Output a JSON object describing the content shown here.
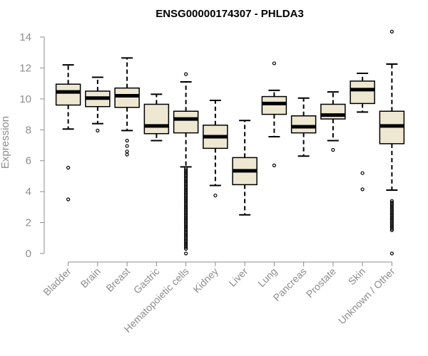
{
  "chart_data": {
    "type": "boxplot",
    "title": "ENSG00000174307 - PHLDA3",
    "xlabel": "",
    "ylabel": "Expression",
    "ylim": [
      0,
      14
    ],
    "yticks": [
      0,
      2,
      4,
      6,
      8,
      10,
      12,
      14
    ],
    "box_color": "#eee8d3",
    "median_color": "#000000",
    "axis_color": "#8c8c8c",
    "categories": [
      "Bladder",
      "Brain",
      "Breast",
      "Gastric",
      "Hematopoietic cells",
      "Kidney",
      "Liver",
      "Lung",
      "Pancreas",
      "Prostate",
      "Skin",
      "Unknown / Other"
    ],
    "boxes": [
      {
        "name": "Bladder",
        "whisker_low": 8.05,
        "q1": 9.6,
        "median": 10.45,
        "q3": 10.95,
        "whisker_high": 12.2,
        "outliers": [
          5.55,
          3.5
        ]
      },
      {
        "name": "Brain",
        "whisker_low": 8.4,
        "q1": 9.5,
        "median": 10.05,
        "q3": 10.5,
        "whisker_high": 11.4,
        "outliers": [
          7.95
        ]
      },
      {
        "name": "Breast",
        "whisker_low": 7.95,
        "q1": 9.45,
        "median": 10.2,
        "q3": 10.7,
        "whisker_high": 12.65,
        "outliers": [
          7.3,
          6.95,
          6.6,
          6.4
        ]
      },
      {
        "name": "Gastric",
        "whisker_low": 7.3,
        "q1": 7.75,
        "median": 8.25,
        "q3": 9.65,
        "whisker_high": 10.3,
        "outliers": []
      },
      {
        "name": "Hematopoietic cells",
        "whisker_low": 5.6,
        "q1": 7.8,
        "median": 8.7,
        "q3": 9.2,
        "whisker_high": 11.1,
        "outliers": [
          11.6,
          5.5,
          5.4,
          5.3,
          5.2,
          5.1,
          5.0,
          4.9,
          4.8,
          4.7,
          4.6,
          4.5,
          4.4,
          4.3,
          4.2,
          4.1,
          4.0,
          3.9,
          3.8,
          3.7,
          3.6,
          3.5,
          3.4,
          3.3,
          3.2,
          3.1,
          3.0,
          2.9,
          2.8,
          2.7,
          2.6,
          2.5,
          2.4,
          2.3,
          2.2,
          2.1,
          2.0,
          1.9,
          1.8,
          1.7,
          1.6,
          1.5,
          1.4,
          1.3,
          1.2,
          1.1,
          1.0,
          0.9,
          0.8,
          0.7,
          0.6,
          0.5,
          0.4,
          0.3,
          0.0
        ]
      },
      {
        "name": "Kidney",
        "whisker_low": 4.4,
        "q1": 6.8,
        "median": 7.55,
        "q3": 8.3,
        "whisker_high": 9.9,
        "outliers": [
          3.75
        ]
      },
      {
        "name": "Liver",
        "whisker_low": 2.5,
        "q1": 4.45,
        "median": 5.35,
        "q3": 6.2,
        "whisker_high": 8.6,
        "outliers": []
      },
      {
        "name": "Lung",
        "whisker_low": 7.55,
        "q1": 9.0,
        "median": 9.7,
        "q3": 10.15,
        "whisker_high": 10.55,
        "outliers": [
          12.3,
          5.7
        ]
      },
      {
        "name": "Pancreas",
        "whisker_low": 6.3,
        "q1": 7.8,
        "median": 8.2,
        "q3": 8.9,
        "whisker_high": 10.05,
        "outliers": []
      },
      {
        "name": "Prostate",
        "whisker_low": 7.3,
        "q1": 8.7,
        "median": 8.95,
        "q3": 9.65,
        "whisker_high": 10.45,
        "outliers": [
          6.7
        ]
      },
      {
        "name": "Skin",
        "whisker_low": 9.15,
        "q1": 9.7,
        "median": 10.6,
        "q3": 11.15,
        "whisker_high": 11.65,
        "outliers": [
          5.2,
          4.15
        ]
      },
      {
        "name": "Unknown / Other",
        "whisker_low": 4.1,
        "q1": 7.1,
        "median": 8.25,
        "q3": 9.2,
        "whisker_high": 12.25,
        "outliers": [
          14.35,
          3.4,
          3.3,
          3.2,
          3.1,
          3.0,
          2.9,
          2.8,
          2.7,
          2.6,
          2.5,
          2.4,
          2.3,
          2.2,
          2.1,
          2.0,
          1.9,
          1.8,
          1.7,
          1.6,
          1.5,
          0.0
        ]
      }
    ]
  }
}
